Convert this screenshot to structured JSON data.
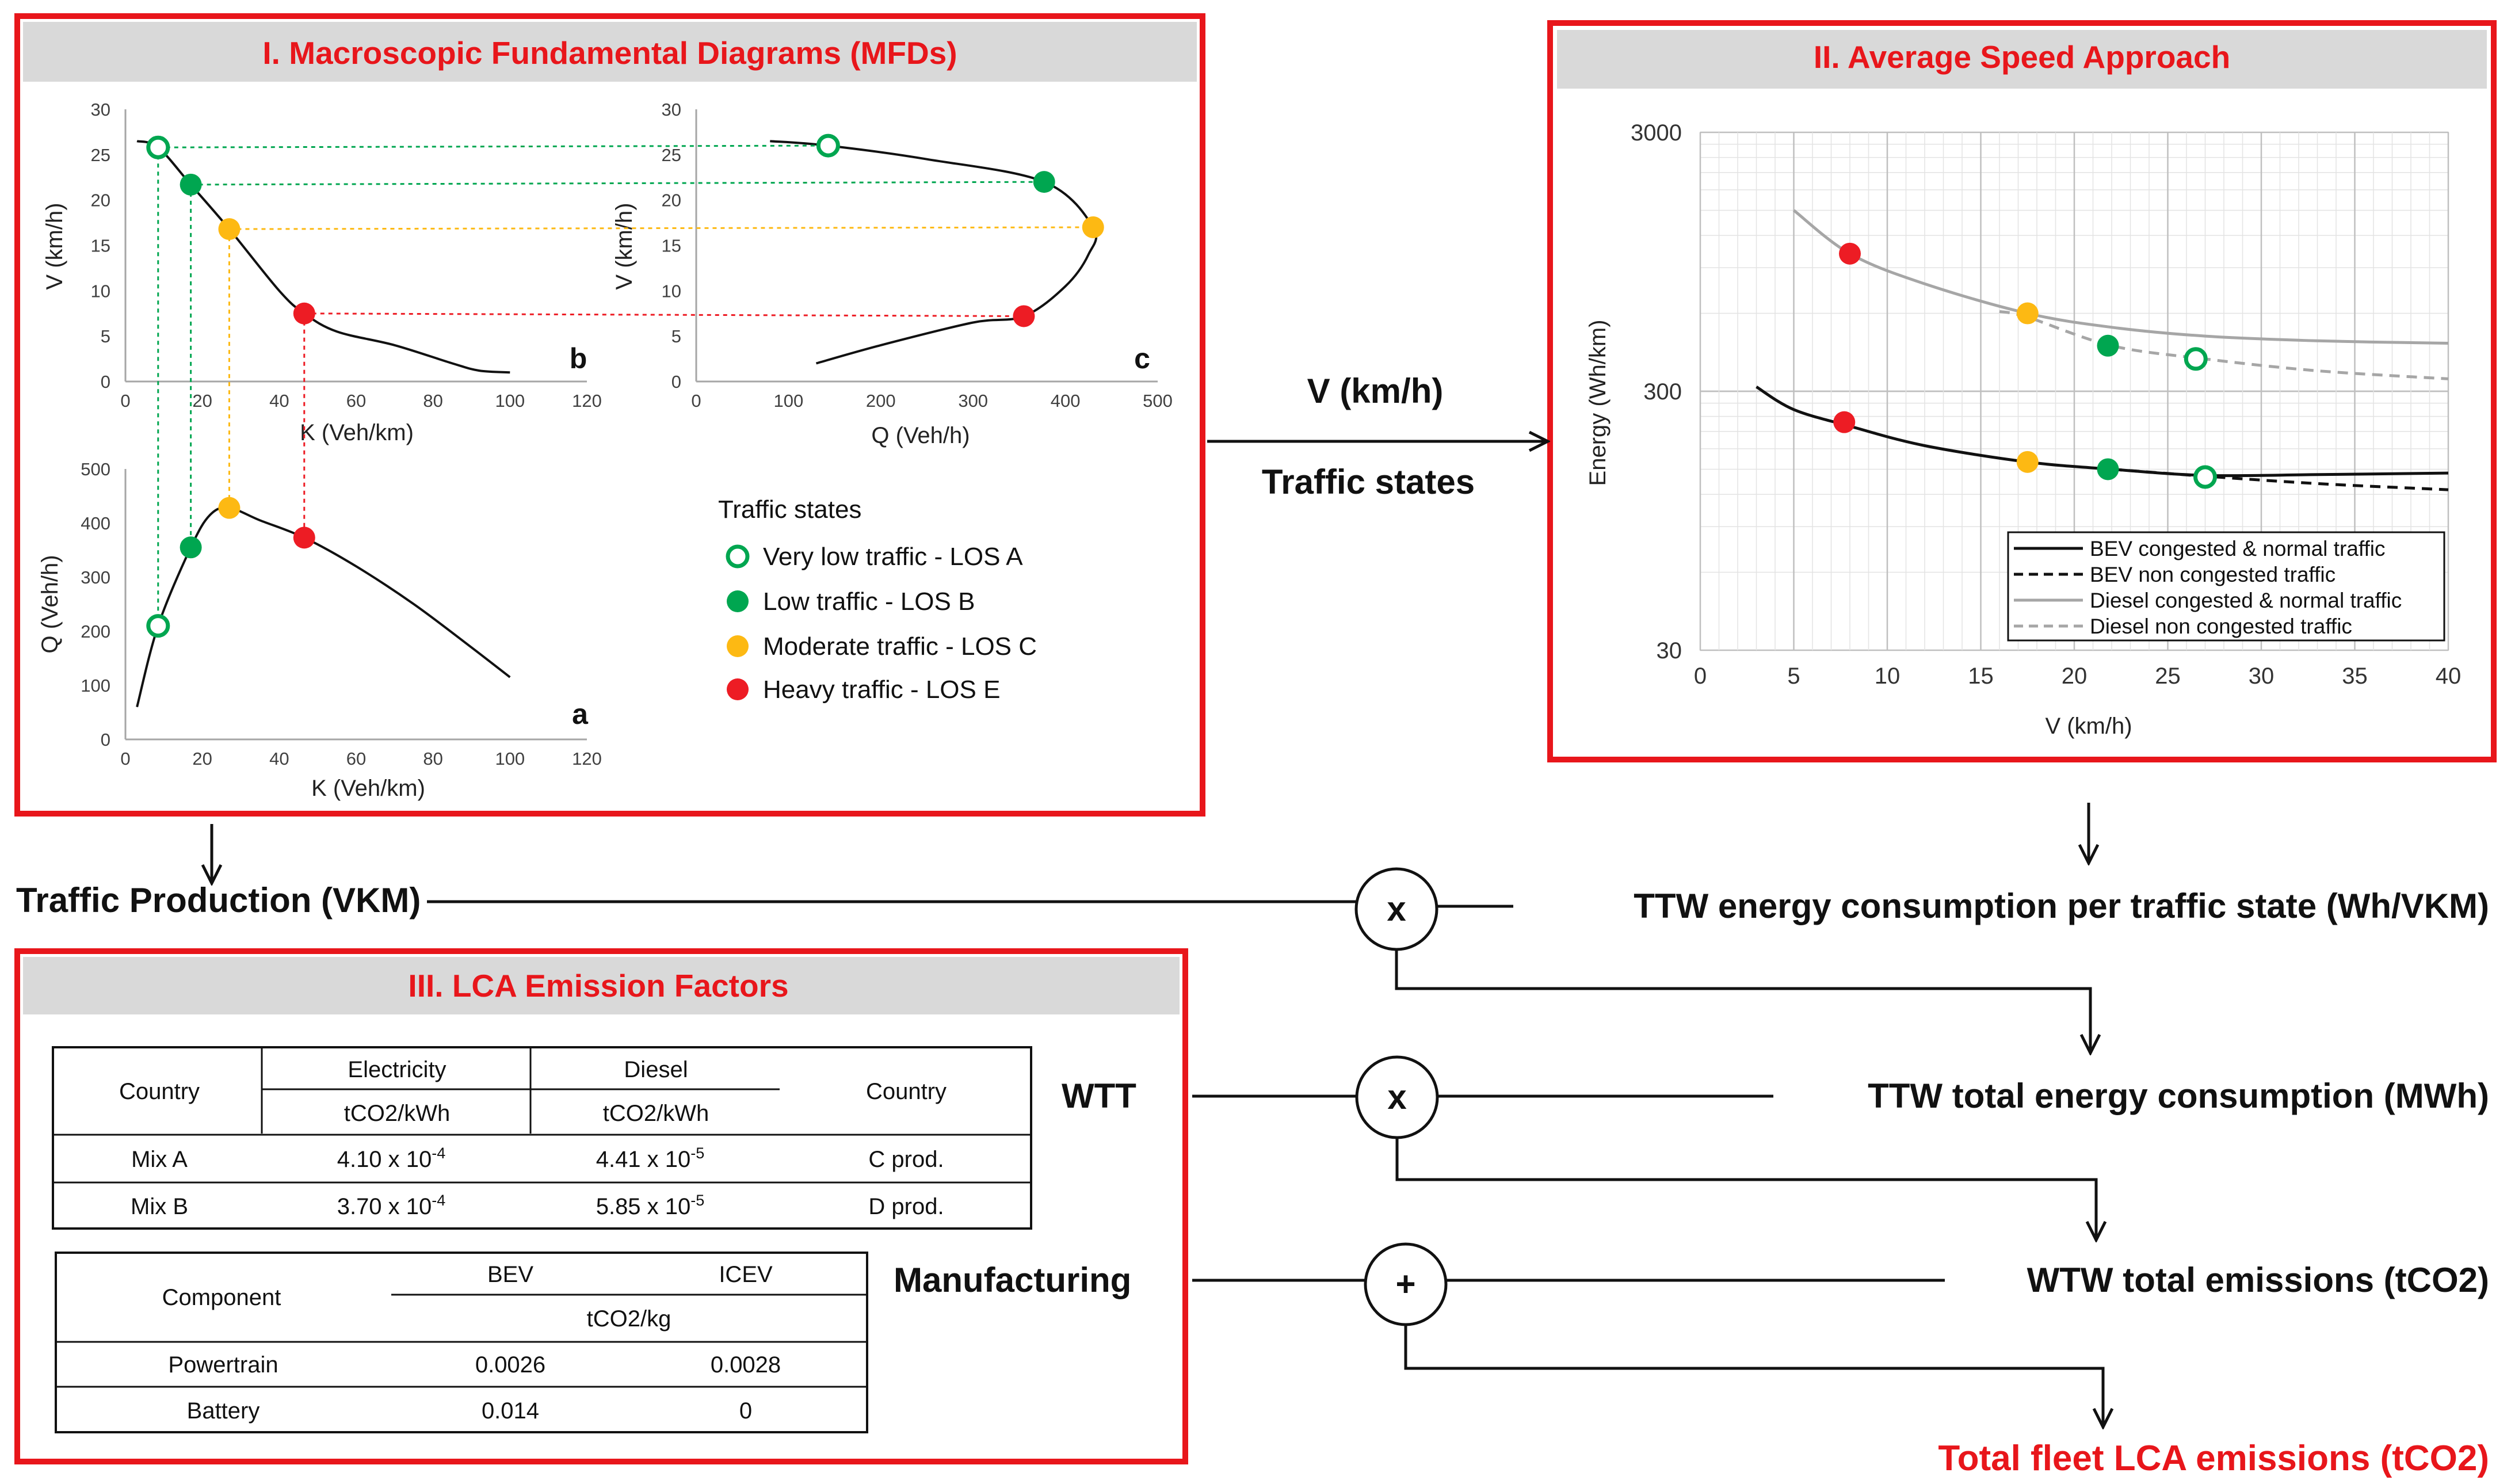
{
  "colors": {
    "frame": "#e8161b",
    "header_bg": "#d9d9d9",
    "los_a": "#00a650",
    "los_b": "#00a650",
    "los_c": "#fdb913",
    "los_e": "#ed1c24",
    "curve": "#111111",
    "diesel": "#a6a6a6"
  },
  "panel1": {
    "title": "I. Macroscopic Fundamental Diagrams (MFDs)",
    "legend_title": "Traffic states",
    "legend": [
      {
        "label": "Very low traffic - LOS A",
        "marker": "hollow-circle-icon"
      },
      {
        "label": "Low traffic - LOS B",
        "marker": "filled-circle-icon"
      },
      {
        "label": "Moderate traffic - LOS C",
        "marker": "filled-circle-icon"
      },
      {
        "label": "Heavy traffic - LOS E",
        "marker": "filled-circle-icon"
      }
    ]
  },
  "panel2": {
    "title": "II. Average Speed Approach"
  },
  "panel3": {
    "title": "III. LCA Emission Factors"
  },
  "chart_data": [
    {
      "id": "b",
      "type": "line",
      "title": "b",
      "xlabel": "K (Veh/km)",
      "ylabel": "V (km/h)",
      "xlim": [
        0,
        120
      ],
      "ylim": [
        0,
        30
      ],
      "xticks": [
        "0",
        "20",
        "40",
        "60",
        "80",
        "100",
        "120"
      ],
      "yticks": [
        "0",
        "5",
        "10",
        "15",
        "20",
        "25",
        "30"
      ],
      "curve": {
        "x": [
          3,
          8.5,
          17,
          27,
          40,
          46.5,
          55,
          70,
          85,
          92,
          100
        ],
        "y": [
          26.5,
          25.8,
          21.7,
          16.8,
          10,
          7.5,
          5.5,
          4,
          2,
          1.2,
          1
        ]
      },
      "points": [
        {
          "state": "LOS A",
          "x": 8.5,
          "y": 25.8
        },
        {
          "state": "LOS B",
          "x": 17,
          "y": 21.7
        },
        {
          "state": "LOS C",
          "x": 27,
          "y": 16.8
        },
        {
          "state": "LOS E",
          "x": 46.5,
          "y": 7.5
        }
      ]
    },
    {
      "id": "c",
      "type": "line",
      "title": "c",
      "xlabel": "Q (Veh/h)",
      "ylabel": "V (km/h)",
      "xlim": [
        0,
        500
      ],
      "ylim": [
        0,
        30
      ],
      "xticks": [
        "0",
        "100",
        "200",
        "300",
        "400",
        "500"
      ],
      "yticks": [
        "0",
        "5",
        "10",
        "15",
        "20",
        "25",
        "30"
      ],
      "curve": {
        "x": [
          80,
          143,
          250,
          377,
          430,
          425,
          400,
          355,
          300,
          200,
          130
        ],
        "y": [
          26.5,
          26,
          24.5,
          22,
          17,
          14,
          10.5,
          7.2,
          6.5,
          4,
          2
        ]
      },
      "points": [
        {
          "state": "LOS A",
          "x": 143,
          "y": 26
        },
        {
          "state": "LOS B",
          "x": 377,
          "y": 22
        },
        {
          "state": "LOS C",
          "x": 430,
          "y": 17
        },
        {
          "state": "LOS E",
          "x": 355,
          "y": 7.2
        }
      ]
    },
    {
      "id": "a",
      "type": "line",
      "title": "a",
      "xlabel": "K (Veh/km)",
      "ylabel": "Q (Veh/h)",
      "xlim": [
        0,
        120
      ],
      "ylim": [
        0,
        500
      ],
      "xticks": [
        "0",
        "20",
        "40",
        "60",
        "80",
        "100",
        "120"
      ],
      "yticks": [
        "0",
        "100",
        "200",
        "300",
        "400",
        "500"
      ],
      "curve": {
        "x": [
          3,
          8.5,
          17,
          22,
          27,
          35,
          46.5,
          60,
          75,
          90,
          100
        ],
        "y": [
          60,
          210,
          355,
          415,
          428,
          405,
          373,
          320,
          250,
          170,
          115
        ]
      },
      "points": [
        {
          "state": "LOS A",
          "x": 8.5,
          "y": 210
        },
        {
          "state": "LOS B",
          "x": 17,
          "y": 355
        },
        {
          "state": "LOS C",
          "x": 27,
          "y": 428
        },
        {
          "state": "LOS E",
          "x": 46.5,
          "y": 373
        }
      ]
    },
    {
      "id": "energy",
      "type": "line",
      "xlabel": "V (km/h)",
      "ylabel": "Energy (Wh/km)",
      "xlim": [
        0,
        40
      ],
      "ylim": [
        30,
        3000
      ],
      "yscale": "log",
      "xticks": [
        "0",
        "5",
        "10",
        "15",
        "20",
        "25",
        "30",
        "35",
        "40"
      ],
      "yticks": [
        "30",
        "300",
        "3000"
      ],
      "legend_position": "bottom-right",
      "series": [
        {
          "name": "BEV congested & normal traffic",
          "x": [
            3,
            5,
            8,
            12,
            17.5,
            22,
            27,
            33,
            40
          ],
          "y": [
            312,
            255,
            220,
            185,
            160,
            150,
            142,
            143,
            145
          ]
        },
        {
          "name": "BEV non congested traffic",
          "x": [
            22,
            27,
            33,
            40
          ],
          "y": [
            150,
            141,
            132,
            125
          ]
        },
        {
          "name": "Diesel congested & normal traffic",
          "x": [
            5,
            8,
            12,
            17.5,
            22,
            27,
            33,
            40
          ],
          "y": [
            1500,
            1020,
            780,
            600,
            530,
            490,
            470,
            460
          ]
        },
        {
          "name": "Diesel non congested traffic",
          "x": [
            16,
            17.5,
            22,
            27,
            33,
            40
          ],
          "y": [
            610,
            580,
            450,
            400,
            360,
            335
          ]
        }
      ],
      "points": [
        {
          "state": "LOS E",
          "series": "Diesel",
          "x": 8,
          "y": 1020
        },
        {
          "state": "LOS C",
          "series": "Diesel",
          "x": 17.5,
          "y": 600
        },
        {
          "state": "LOS B",
          "series": "Diesel",
          "x": 21.8,
          "y": 450
        },
        {
          "state": "LOS A",
          "series": "Diesel",
          "x": 26.5,
          "y": 400
        },
        {
          "state": "LOS E",
          "series": "BEV",
          "x": 7.7,
          "y": 228
        },
        {
          "state": "LOS C",
          "series": "BEV",
          "x": 17.5,
          "y": 160
        },
        {
          "state": "LOS B",
          "series": "BEV",
          "x": 21.8,
          "y": 150
        },
        {
          "state": "LOS A",
          "series": "BEV",
          "x": 27,
          "y": 140
        }
      ]
    }
  ],
  "wtt_table": {
    "headers": {
      "country": "Country",
      "electricity": "Electricity",
      "diesel": "Diesel",
      "unit": "tCO2/kWh",
      "country2": "Country"
    },
    "rows": [
      {
        "mix": "Mix A",
        "electricity": "4.10 x 10",
        "electricity_exp": "-4",
        "diesel": "4.41 x 10",
        "diesel_exp": "-5",
        "country": "C prod."
      },
      {
        "mix": "Mix B",
        "electricity": "3.70 x 10",
        "electricity_exp": "-4",
        "diesel": "5.85 x 10",
        "diesel_exp": "-5",
        "country": "D prod."
      }
    ]
  },
  "mfg_table": {
    "headers": {
      "component": "Component",
      "bev": "BEV",
      "icev": "ICEV",
      "unit": "tCO2/kg"
    },
    "rows": [
      {
        "component": "Powertrain",
        "bev": "0.0026",
        "icev": "0.0028"
      },
      {
        "component": "Battery",
        "bev": "0.014",
        "icev": "0"
      }
    ]
  },
  "flow": {
    "v_label": "V (km/h)",
    "states_label": "Traffic states",
    "traffic_production": "Traffic Production (VKM)",
    "ttw_per_state": "TTW energy consumption per traffic state (Wh/VKM)",
    "wtt": "WTT",
    "ttw_total": "TTW total energy consumption (MWh)",
    "manufacturing": "Manufacturing",
    "wtw_total": "WTW total emissions (tCO2)",
    "total_lca": "Total fleet LCA emissions (tCO2)",
    "op_multiply_1": "x",
    "op_multiply_2": "x",
    "op_add": "+"
  }
}
